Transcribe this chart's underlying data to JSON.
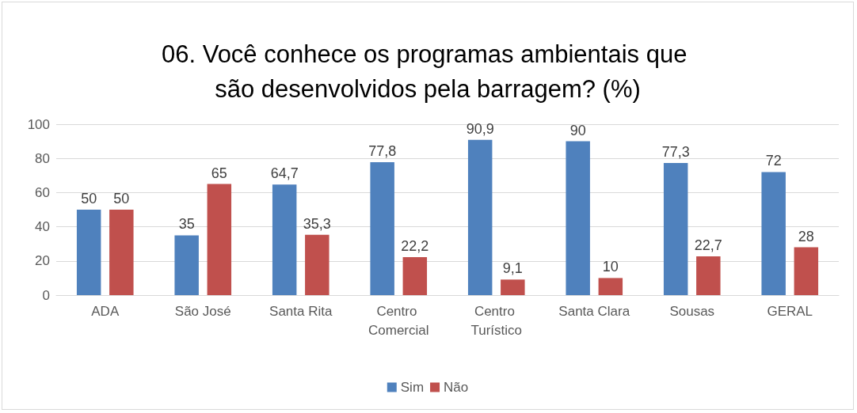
{
  "chart_data": {
    "type": "bar",
    "title": "06. Você conhece os programas ambientais que são desenvolvidos pela barragem? (%)",
    "categories": [
      "ADA",
      "São José",
      "Santa Rita",
      "Centro Comercial",
      "Centro Turístico",
      "Santa Clara",
      "Sousas",
      "GERAL"
    ],
    "series": [
      {
        "name": "Sim",
        "color": "#4f81bd",
        "values": [
          50,
          35,
          64.7,
          77.8,
          90.9,
          90,
          77.3,
          72
        ],
        "value_labels": [
          "50",
          "35",
          "64,7",
          "77,8",
          "90,9",
          "90",
          "77,3",
          "72"
        ]
      },
      {
        "name": "Não",
        "color": "#c0504d",
        "values": [
          50,
          65,
          35.3,
          22.2,
          9.1,
          10,
          22.7,
          28
        ],
        "value_labels": [
          "50",
          "65",
          "35,3",
          "22,2",
          "9,1",
          "10",
          "22,7",
          "28"
        ]
      }
    ],
    "ylim": [
      0,
      100
    ],
    "yticks": [
      0,
      20,
      40,
      60,
      80,
      100
    ],
    "grid": "y",
    "legend": "bottom"
  }
}
